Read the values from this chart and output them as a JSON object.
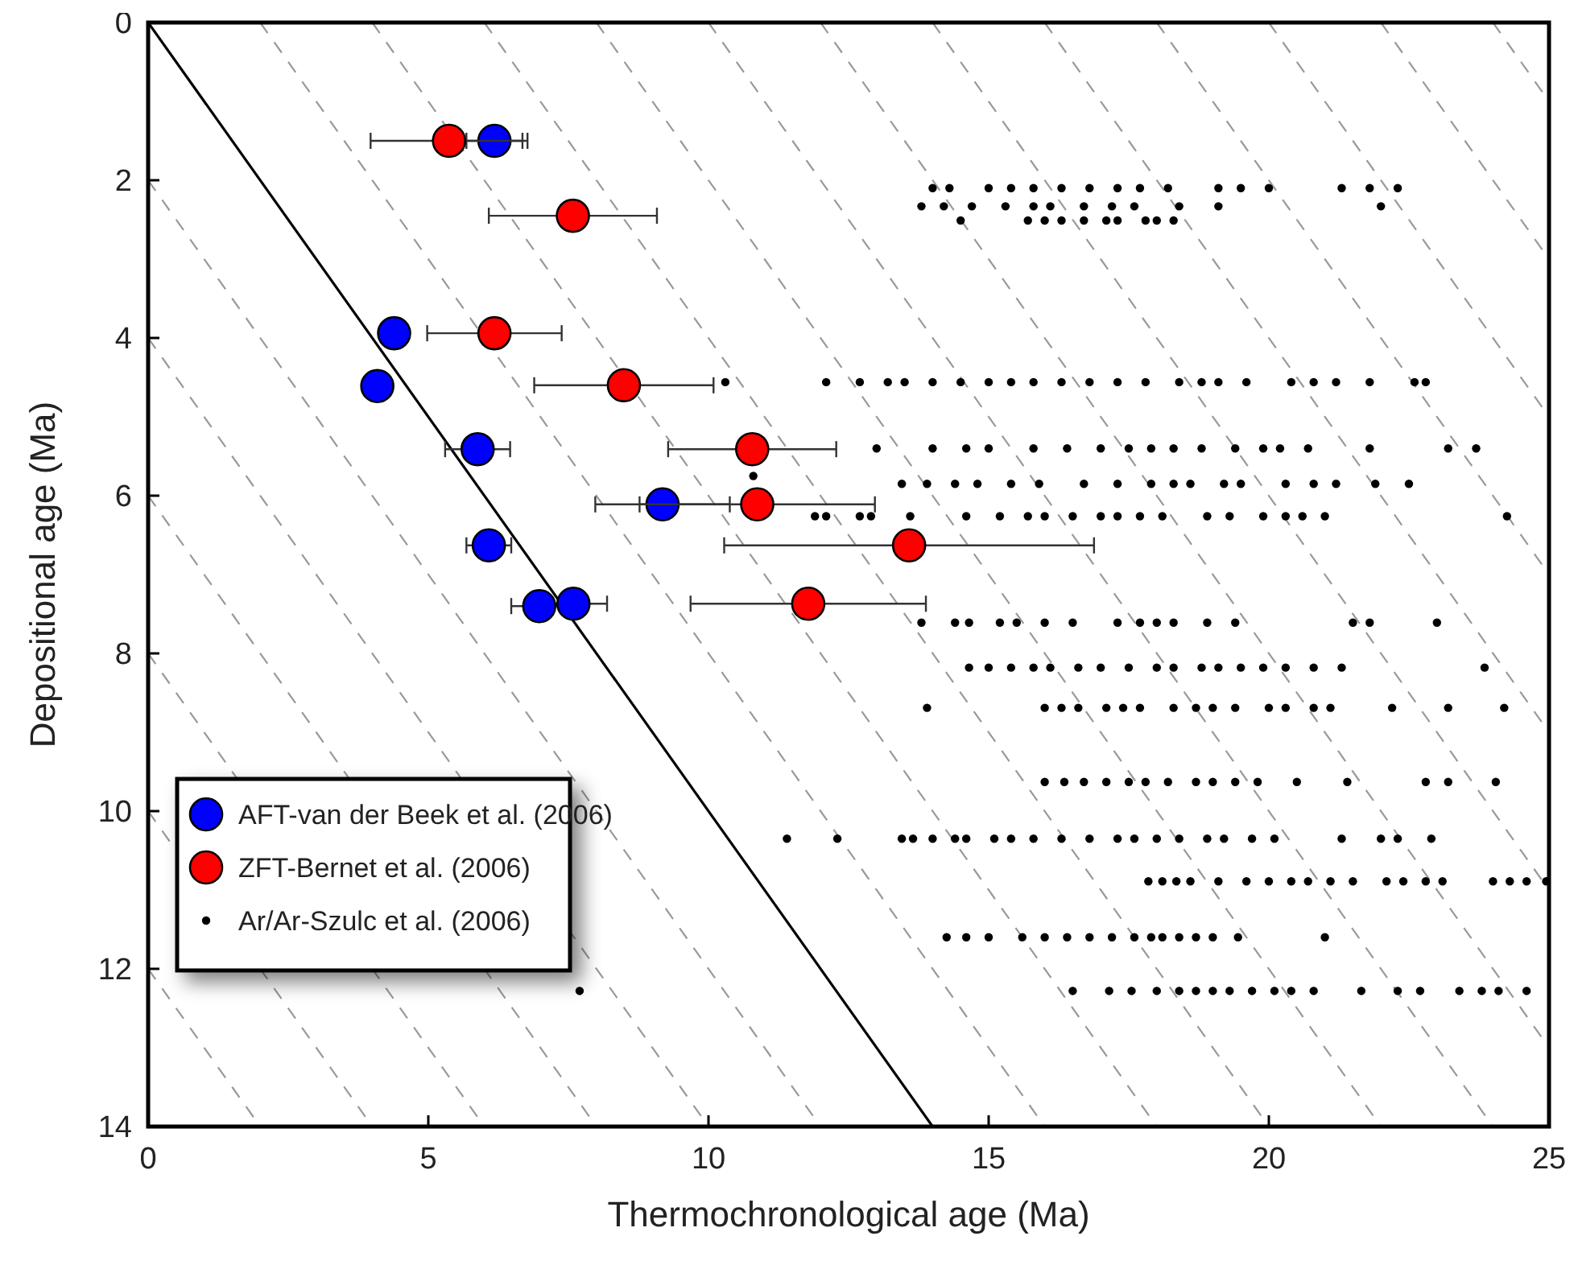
{
  "chart_data": {
    "type": "scatter",
    "xlabel": "Thermochronological age (Ma)",
    "ylabel": "Depositional age (Ma)",
    "xlim": [
      0,
      25
    ],
    "xticks": [
      0,
      5,
      10,
      15,
      20,
      25
    ],
    "ylim": [
      14,
      0
    ],
    "yticks": [
      0,
      2,
      4,
      6,
      8,
      10,
      12,
      14
    ],
    "grid": false,
    "legend": "bottom left",
    "marker": "circle",
    "series": [
      {
        "type": "line",
        "color": "#999999",
        "line_style": "dashed",
        "marker": "none",
        "x": [
          0,
          12
        ],
        "values": [
          2,
          14
        ]
      },
      {
        "type": "line",
        "color": "#999999",
        "line_style": "dashed",
        "marker": "none",
        "x": [
          0,
          10
        ],
        "values": [
          4,
          14
        ]
      },
      {
        "type": "line",
        "color": "#999999",
        "line_style": "dashed",
        "marker": "none",
        "x": [
          0,
          8
        ],
        "values": [
          6,
          14
        ]
      },
      {
        "type": "line",
        "color": "#999999",
        "line_style": "dashed",
        "marker": "none",
        "x": [
          0,
          6
        ],
        "values": [
          8,
          14
        ]
      },
      {
        "type": "line",
        "color": "#999999",
        "line_style": "dashed",
        "marker": "none",
        "x": [
          0,
          4
        ],
        "values": [
          10,
          14
        ]
      },
      {
        "type": "line",
        "color": "#999999",
        "line_style": "dashed",
        "marker": "none",
        "x": [
          0,
          2
        ],
        "values": [
          12,
          14
        ]
      },
      {
        "type": "line",
        "color": "#999999",
        "line_style": "dashed",
        "marker": "none",
        "x": [
          2,
          16
        ],
        "values": [
          0,
          14
        ]
      },
      {
        "type": "line",
        "color": "#999999",
        "line_style": "dashed",
        "marker": "none",
        "x": [
          4,
          18
        ],
        "values": [
          0,
          14
        ]
      },
      {
        "type": "line",
        "color": "#999999",
        "line_style": "dashed",
        "marker": "none",
        "x": [
          6,
          20
        ],
        "values": [
          0,
          14
        ]
      },
      {
        "type": "line",
        "color": "#999999",
        "line_style": "dashed",
        "marker": "none",
        "x": [
          8,
          22
        ],
        "values": [
          0,
          14
        ]
      },
      {
        "type": "line",
        "color": "#999999",
        "line_style": "dashed",
        "marker": "none",
        "x": [
          10,
          24
        ],
        "values": [
          0,
          14
        ]
      },
      {
        "type": "line",
        "color": "#999999",
        "line_style": "dashed",
        "marker": "none",
        "x": [
          12,
          25
        ],
        "values": [
          0,
          13
        ]
      },
      {
        "type": "line",
        "color": "#999999",
        "line_style": "dashed",
        "marker": "none",
        "x": [
          14,
          25
        ],
        "values": [
          0,
          11
        ]
      },
      {
        "type": "line",
        "color": "#999999",
        "line_style": "dashed",
        "marker": "none",
        "x": [
          16,
          25
        ],
        "values": [
          0,
          9
        ]
      },
      {
        "type": "line",
        "color": "#999999",
        "line_style": "dashed",
        "marker": "none",
        "x": [
          18,
          25
        ],
        "values": [
          0,
          7
        ]
      },
      {
        "type": "line",
        "color": "#999999",
        "line_style": "dashed",
        "marker": "none",
        "x": [
          20,
          25
        ],
        "values": [
          0,
          5
        ]
      },
      {
        "type": "line",
        "color": "#999999",
        "line_style": "dashed",
        "marker": "none",
        "x": [
          22,
          25
        ],
        "values": [
          0,
          3
        ]
      },
      {
        "type": "line",
        "color": "#999999",
        "line_style": "dashed",
        "marker": "none",
        "x": [
          24,
          25
        ],
        "values": [
          0,
          1
        ]
      },
      {
        "type": "line",
        "color": "#000000",
        "line_style": "solid",
        "marker": "none",
        "x": [
          0,
          14
        ],
        "values": [
          0,
          14
        ]
      },
      {
        "name": "AFT-van der Beek et al. (2006)",
        "color": "#0000ff",
        "x": [
          6.18,
          4.39,
          4.09,
          5.88,
          9.18,
          6.08,
          6.98,
          7.59
        ],
        "values": [
          1.5,
          3.94,
          4.61,
          5.41,
          6.11,
          6.63,
          7.4,
          7.37
        ],
        "xerrors": [
          0.5,
          null,
          null,
          0.58,
          1.2,
          0.4,
          0.5,
          0.6
        ]
      },
      {
        "name": "ZFT-Bernet et al. (2006)",
        "color": "#ff0000",
        "x": [
          5.37,
          7.58,
          6.18,
          8.49,
          10.78,
          10.87,
          13.58,
          11.78
        ],
        "values": [
          1.5,
          2.45,
          3.94,
          4.6,
          5.41,
          6.11,
          6.63,
          7.37
        ],
        "xerrors": [
          1.4,
          1.5,
          1.2,
          1.6,
          1.5,
          2.1,
          3.3,
          2.1
        ]
      },
      {
        "name": "Ar/Ar-Szulc et al. (2006)",
        "color": "#000000",
        "x": [
          14.0,
          14.3,
          15.0,
          15.4,
          15.8,
          16.3,
          16.8,
          17.3,
          17.7,
          18.2,
          19.1,
          19.5,
          20.0,
          21.3,
          21.8,
          22.3,
          13.8,
          14.2,
          14.7,
          15.3,
          15.8,
          16.1,
          16.7,
          17.2,
          17.6,
          18.4,
          19.1,
          22.0,
          14.5,
          15.7,
          16.0,
          16.3,
          16.7,
          17.1,
          17.3,
          17.8,
          18.0,
          18.3,
          10.3,
          12.1,
          12.7,
          13.2,
          13.5,
          14.0,
          14.5,
          15.0,
          15.4,
          15.8,
          16.3,
          16.8,
          17.3,
          17.8,
          18.4,
          18.8,
          19.1,
          19.6,
          20.4,
          20.8,
          21.2,
          21.8,
          22.6,
          22.8,
          13.0,
          14.0,
          14.6,
          15.0,
          15.8,
          16.4,
          17.0,
          17.5,
          17.9,
          18.3,
          18.8,
          19.4,
          19.9,
          20.2,
          20.7,
          21.8,
          23.2,
          23.7,
          10.8,
          13.45,
          13.9,
          14.4,
          14.8,
          15.4,
          15.9,
          16.7,
          17.3,
          17.9,
          18.3,
          18.6,
          19.2,
          19.5,
          20.3,
          20.8,
          21.2,
          21.9,
          22.5,
          11.9,
          12.1,
          12.7,
          12.9,
          13.6,
          14.6,
          15.2,
          15.7,
          16.0,
          16.5,
          17.0,
          17.3,
          17.7,
          18.1,
          18.9,
          19.3,
          19.9,
          20.3,
          20.6,
          21.0,
          24.25,
          13.8,
          14.4,
          14.65,
          15.2,
          15.5,
          16.0,
          16.5,
          17.3,
          17.7,
          18.0,
          18.3,
          18.9,
          19.4,
          21.5,
          21.8,
          23.0,
          14.65,
          15.0,
          15.4,
          15.8,
          16.1,
          16.6,
          17.0,
          17.5,
          18.0,
          18.3,
          18.8,
          19.1,
          19.5,
          19.9,
          20.3,
          20.8,
          21.3,
          23.85,
          13.9,
          16.0,
          16.3,
          16.6,
          17.1,
          17.4,
          17.7,
          18.3,
          18.7,
          19.0,
          19.4,
          20.0,
          20.3,
          20.8,
          21.1,
          22.2,
          23.2,
          24.2,
          16.0,
          16.35,
          16.7,
          17.1,
          17.5,
          17.8,
          18.2,
          18.7,
          19.0,
          19.4,
          19.8,
          20.5,
          21.4,
          22.8,
          23.2,
          24.05,
          11.4,
          12.3,
          13.45,
          13.65,
          14.0,
          14.4,
          14.6,
          15.1,
          15.4,
          15.8,
          16.3,
          16.8,
          17.3,
          17.6,
          18.0,
          18.4,
          18.9,
          19.2,
          19.7,
          20.1,
          21.3,
          22.0,
          22.3,
          22.9,
          17.85,
          18.1,
          18.35,
          18.6,
          19.1,
          19.6,
          20.0,
          20.4,
          20.7,
          21.1,
          21.5,
          22.1,
          22.4,
          22.8,
          23.1,
          24.0,
          24.3,
          24.6,
          24.95,
          14.25,
          14.6,
          15.0,
          15.6,
          16.0,
          16.4,
          16.8,
          17.2,
          17.6,
          17.9,
          18.1,
          18.4,
          18.7,
          19.0,
          19.45,
          21.0,
          7.7,
          16.5,
          17.15,
          17.55,
          18.0,
          18.4,
          18.7,
          19.0,
          19.3,
          19.7,
          20.1,
          20.4,
          20.8,
          21.65,
          22.3,
          22.7,
          23.4,
          23.8,
          24.1,
          24.6
        ],
        "values": [
          2.1,
          2.1,
          2.1,
          2.1,
          2.1,
          2.1,
          2.1,
          2.1,
          2.1,
          2.1,
          2.1,
          2.1,
          2.1,
          2.1,
          2.1,
          2.1,
          2.33,
          2.33,
          2.33,
          2.33,
          2.33,
          2.33,
          2.33,
          2.33,
          2.33,
          2.33,
          2.33,
          2.33,
          2.51,
          2.51,
          2.51,
          2.51,
          2.51,
          2.51,
          2.51,
          2.51,
          2.51,
          2.51,
          4.56,
          4.56,
          4.56,
          4.56,
          4.56,
          4.56,
          4.56,
          4.56,
          4.56,
          4.56,
          4.56,
          4.56,
          4.56,
          4.56,
          4.56,
          4.56,
          4.56,
          4.56,
          4.56,
          4.56,
          4.56,
          4.56,
          4.56,
          4.56,
          5.4,
          5.4,
          5.4,
          5.4,
          5.4,
          5.4,
          5.4,
          5.4,
          5.4,
          5.4,
          5.4,
          5.4,
          5.4,
          5.4,
          5.4,
          5.4,
          5.4,
          5.4,
          5.75,
          5.85,
          5.85,
          5.85,
          5.85,
          5.85,
          5.85,
          5.85,
          5.85,
          5.85,
          5.85,
          5.85,
          5.85,
          5.85,
          5.85,
          5.85,
          5.85,
          5.85,
          5.85,
          6.26,
          6.26,
          6.26,
          6.26,
          6.26,
          6.26,
          6.26,
          6.26,
          6.26,
          6.26,
          6.26,
          6.26,
          6.26,
          6.26,
          6.26,
          6.26,
          6.26,
          6.26,
          6.26,
          6.26,
          6.26,
          7.61,
          7.61,
          7.61,
          7.61,
          7.61,
          7.61,
          7.61,
          7.61,
          7.61,
          7.61,
          7.61,
          7.61,
          7.61,
          7.61,
          7.61,
          7.61,
          8.18,
          8.18,
          8.18,
          8.18,
          8.18,
          8.18,
          8.18,
          8.18,
          8.18,
          8.18,
          8.18,
          8.18,
          8.18,
          8.18,
          8.18,
          8.18,
          8.18,
          8.18,
          8.69,
          8.69,
          8.69,
          8.69,
          8.69,
          8.69,
          8.69,
          8.69,
          8.69,
          8.69,
          8.69,
          8.69,
          8.69,
          8.69,
          8.69,
          8.69,
          8.69,
          8.69,
          9.63,
          9.63,
          9.63,
          9.63,
          9.63,
          9.63,
          9.63,
          9.63,
          9.63,
          9.63,
          9.63,
          9.63,
          9.63,
          9.63,
          9.63,
          9.63,
          10.35,
          10.35,
          10.35,
          10.35,
          10.35,
          10.35,
          10.35,
          10.35,
          10.35,
          10.35,
          10.35,
          10.35,
          10.35,
          10.35,
          10.35,
          10.35,
          10.35,
          10.35,
          10.35,
          10.35,
          10.35,
          10.35,
          10.35,
          10.35,
          10.89,
          10.89,
          10.89,
          10.89,
          10.89,
          10.89,
          10.89,
          10.89,
          10.89,
          10.89,
          10.89,
          10.89,
          10.89,
          10.89,
          10.89,
          10.89,
          10.89,
          10.89,
          10.89,
          11.6,
          11.6,
          11.6,
          11.6,
          11.6,
          11.6,
          11.6,
          11.6,
          11.6,
          11.6,
          11.6,
          11.6,
          11.6,
          11.6,
          11.6,
          11.6,
          12.28,
          12.28,
          12.28,
          12.28,
          12.28,
          12.28,
          12.28,
          12.28,
          12.28,
          12.28,
          12.28,
          12.28,
          12.28,
          12.28,
          12.28,
          12.28,
          12.28,
          12.28,
          12.28,
          12.28
        ]
      }
    ]
  }
}
